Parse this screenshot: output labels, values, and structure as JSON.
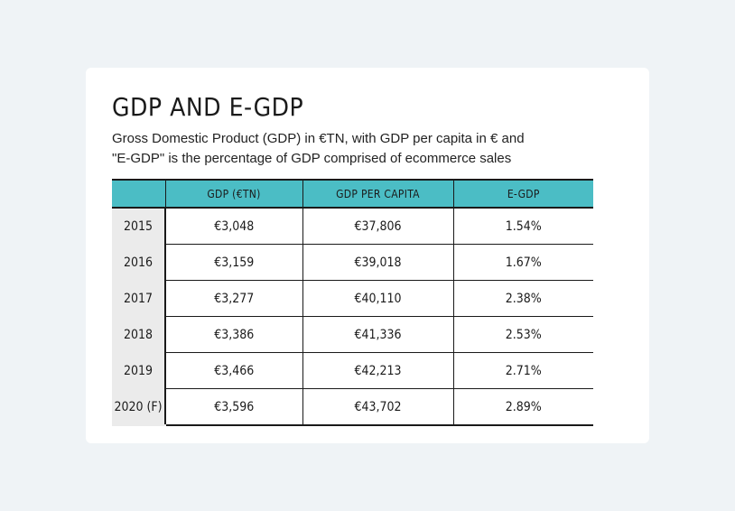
{
  "chart_data": {
    "type": "table",
    "title": "GDP AND E-GDP",
    "subtitle": [
      "Gross Domestic Product (GDP) in €TN, with GDP per capita in € and",
      "\"E-GDP\" is the percentage of GDP comprised of ecommerce sales"
    ],
    "columns": [
      "",
      "GDP (€TN)",
      "GDP PER CAPITA",
      "E-GDP"
    ],
    "rows": [
      {
        "year": "2015",
        "gdp": "€3,048",
        "gdp_per_capita": "€37,806",
        "e_gdp": "1.54%"
      },
      {
        "year": "2016",
        "gdp": "€3,159",
        "gdp_per_capita": "€39,018",
        "e_gdp": "1.67%"
      },
      {
        "year": "2017",
        "gdp": "€3,277",
        "gdp_per_capita": "€40,110",
        "e_gdp": "2.38%"
      },
      {
        "year": "2018",
        "gdp": "€3,386",
        "gdp_per_capita": "€41,336",
        "e_gdp": "2.53%"
      },
      {
        "year": "2019",
        "gdp": "€3,466",
        "gdp_per_capita": "€42,213",
        "e_gdp": "2.71%"
      },
      {
        "year": "2020 (F)",
        "gdp": "€3,596",
        "gdp_per_capita": "€43,702",
        "e_gdp": "2.89%"
      }
    ],
    "header_color": "#4bbdc5",
    "year_column_color": "#ebebeb"
  }
}
